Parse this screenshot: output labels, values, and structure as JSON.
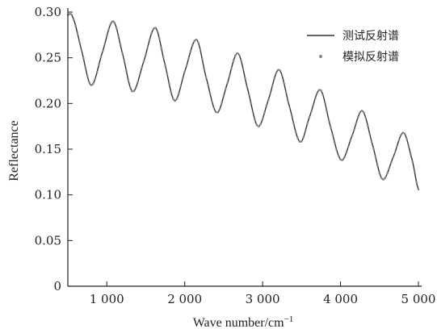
{
  "chart_data": {
    "type": "line",
    "title": "",
    "xlabel_main": "Wave number/cm",
    "xlabel_sup": "−1",
    "ylabel": "Reflectance",
    "xlim": [
      500,
      5000
    ],
    "ylim": [
      0,
      0.3
    ],
    "xticks": [
      1000,
      2000,
      3000,
      4000,
      5000
    ],
    "xtick_labels": [
      "1 000",
      "2 000",
      "3 000",
      "4 000",
      "5 000"
    ],
    "yticks": [
      0,
      0.05,
      0.1,
      0.15,
      0.2,
      0.25,
      0.3
    ],
    "ytick_labels": [
      "0",
      "0.05",
      "0.10",
      "0.15",
      "0.20",
      "0.25",
      "0.30"
    ],
    "legend_position": "top-right",
    "series": [
      {
        "name": "测试反射谱",
        "style": "line",
        "color": "#333333",
        "x": [
          500,
          560,
          670,
          800,
          940,
          1080,
          1200,
          1330,
          1470,
          1620,
          1740,
          1870,
          2000,
          2150,
          2270,
          2410,
          2540,
          2680,
          2810,
          2940,
          3070,
          3210,
          3340,
          3480,
          3600,
          3740,
          3870,
          4010,
          4150,
          4280,
          4410,
          4540,
          4680,
          4810,
          4930,
          5000
        ],
        "y": [
          0.297,
          0.295,
          0.26,
          0.22,
          0.255,
          0.29,
          0.255,
          0.213,
          0.245,
          0.283,
          0.245,
          0.203,
          0.235,
          0.27,
          0.23,
          0.19,
          0.22,
          0.255,
          0.215,
          0.175,
          0.203,
          0.237,
          0.198,
          0.158,
          0.185,
          0.215,
          0.175,
          0.138,
          0.165,
          0.192,
          0.155,
          0.117,
          0.142,
          0.168,
          0.135,
          0.106
        ]
      },
      {
        "name": "模拟反射谱",
        "style": "markers",
        "color": "#888888"
      }
    ]
  }
}
